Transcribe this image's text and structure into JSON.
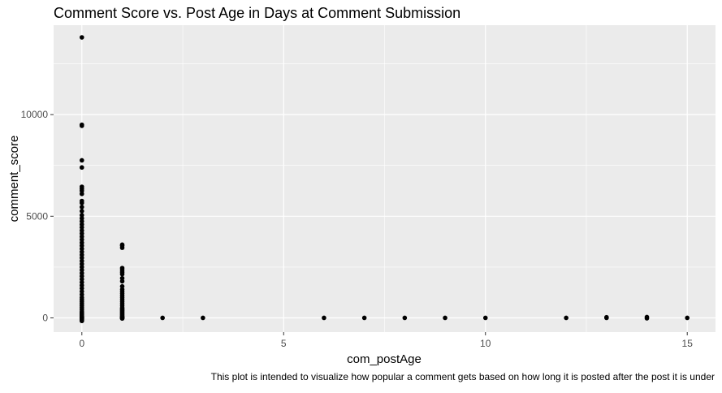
{
  "chart_data": {
    "type": "scatter",
    "title": "Comment Score vs. Post Age in Days at Comment Submission",
    "xlabel": "com_postAge",
    "ylabel": "comment_score",
    "caption": "This plot is intended to visualize how popular a comment gets based on how long it is posted after the post it is under",
    "xlim": [
      -0.7,
      15.7
    ],
    "ylim": [
      -700,
      14400
    ],
    "x_ticks": [
      0,
      5,
      10,
      15
    ],
    "x_tick_labels": [
      "0",
      "5",
      "10",
      "15"
    ],
    "y_ticks": [
      0,
      5000,
      10000
    ],
    "y_tick_labels": [
      "0",
      "5000",
      "10000"
    ],
    "grid": true,
    "colors": {
      "panel": "#ebebeb",
      "grid_major": "#ffffff",
      "point": "#000000",
      "axis_text": "#4d4d4d",
      "title_text": "#000000"
    },
    "series": [
      {
        "x": [
          0,
          0,
          0,
          0,
          0,
          0,
          0,
          0,
          0,
          0,
          0,
          0,
          0,
          0,
          0,
          0,
          0,
          0,
          0,
          0,
          0,
          0,
          0,
          0,
          0,
          0,
          0,
          0,
          0,
          0,
          0,
          0,
          0,
          0,
          0,
          0,
          0,
          0,
          0,
          0,
          0,
          0,
          0,
          0,
          0,
          0,
          0,
          0,
          0,
          0,
          0,
          0,
          0,
          0,
          0,
          0,
          0,
          0,
          0,
          0,
          0,
          0,
          0,
          0,
          0,
          0,
          0,
          0,
          1,
          1,
          1,
          1,
          1,
          1,
          1,
          1,
          1,
          1,
          1,
          1,
          1,
          1,
          1,
          1,
          1,
          1,
          1,
          1,
          1,
          1,
          1,
          1,
          1,
          1,
          1,
          1,
          1,
          1,
          1,
          1,
          1,
          1,
          2,
          3,
          6,
          7,
          8,
          9,
          10,
          12,
          13,
          13,
          14,
          14,
          15
        ],
        "y": [
          13800,
          9500,
          9450,
          7750,
          7400,
          6450,
          6350,
          6250,
          6100,
          5750,
          5650,
          5450,
          5250,
          5050,
          4900,
          4750,
          4600,
          4450,
          4300,
          4150,
          4000,
          3850,
          3700,
          3550,
          3400,
          3250,
          3100,
          2950,
          2800,
          2650,
          2500,
          2350,
          2200,
          2050,
          1900,
          1750,
          1600,
          1450,
          1300,
          1150,
          1000,
          900,
          800,
          700,
          600,
          500,
          400,
          300,
          250,
          200,
          150,
          100,
          80,
          60,
          40,
          20,
          10,
          5,
          0,
          -5,
          -10,
          -20,
          -40,
          -60,
          -80,
          -100,
          -120,
          -150,
          3600,
          3550,
          3450,
          2450,
          2350,
          2250,
          2150,
          1950,
          1800,
          1550,
          1400,
          1300,
          1200,
          1100,
          1000,
          900,
          800,
          700,
          600,
          500,
          450,
          400,
          350,
          300,
          250,
          200,
          150,
          100,
          60,
          30,
          10,
          0,
          -10,
          -30,
          0,
          0,
          0,
          0,
          0,
          0,
          0,
          0,
          30,
          0,
          40,
          -20,
          0
        ]
      }
    ]
  }
}
